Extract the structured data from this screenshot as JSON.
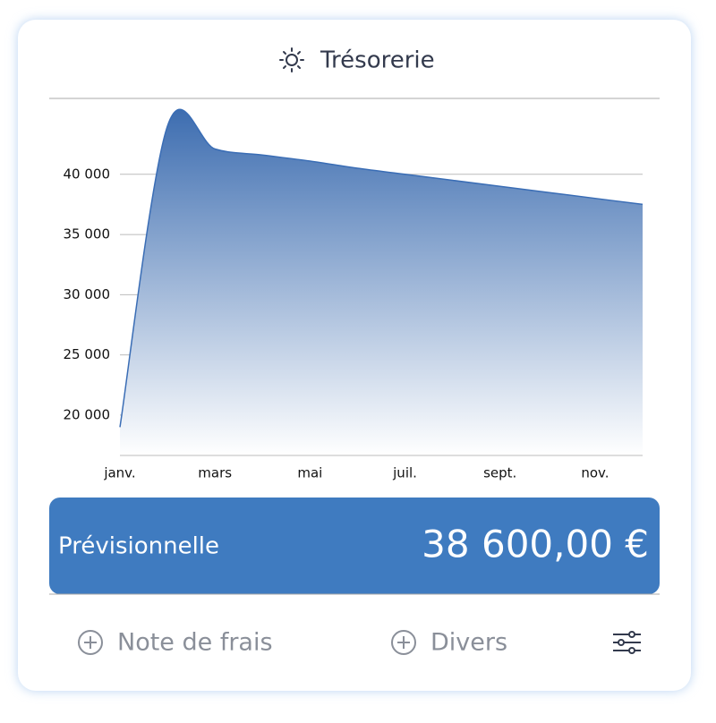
{
  "header": {
    "title": "Trésorerie"
  },
  "chart_data": {
    "type": "area",
    "categories": [
      "janv.",
      null,
      "mars",
      null,
      "mai",
      null,
      "juil.",
      null,
      "sept.",
      null,
      "nov.",
      null
    ],
    "values": [
      19000,
      44000,
      42100,
      41600,
      41100,
      40500,
      40000,
      39500,
      39000,
      38500,
      38000,
      37500
    ],
    "color": "#3a6db5",
    "ylim": [
      16650,
      46300
    ],
    "yticks": [
      {
        "value": 20000,
        "label": "20 000"
      },
      {
        "value": 25000,
        "label": "25 000"
      },
      {
        "value": 30000,
        "label": "30 000"
      },
      {
        "value": 35000,
        "label": "35 000"
      },
      {
        "value": 40000,
        "label": "40 000"
      }
    ],
    "grid": true
  },
  "summary": {
    "label": "Prévisionnelle",
    "value": "38 600,00 €"
  },
  "actions": {
    "expense": "Note de frais",
    "misc": "Divers"
  }
}
